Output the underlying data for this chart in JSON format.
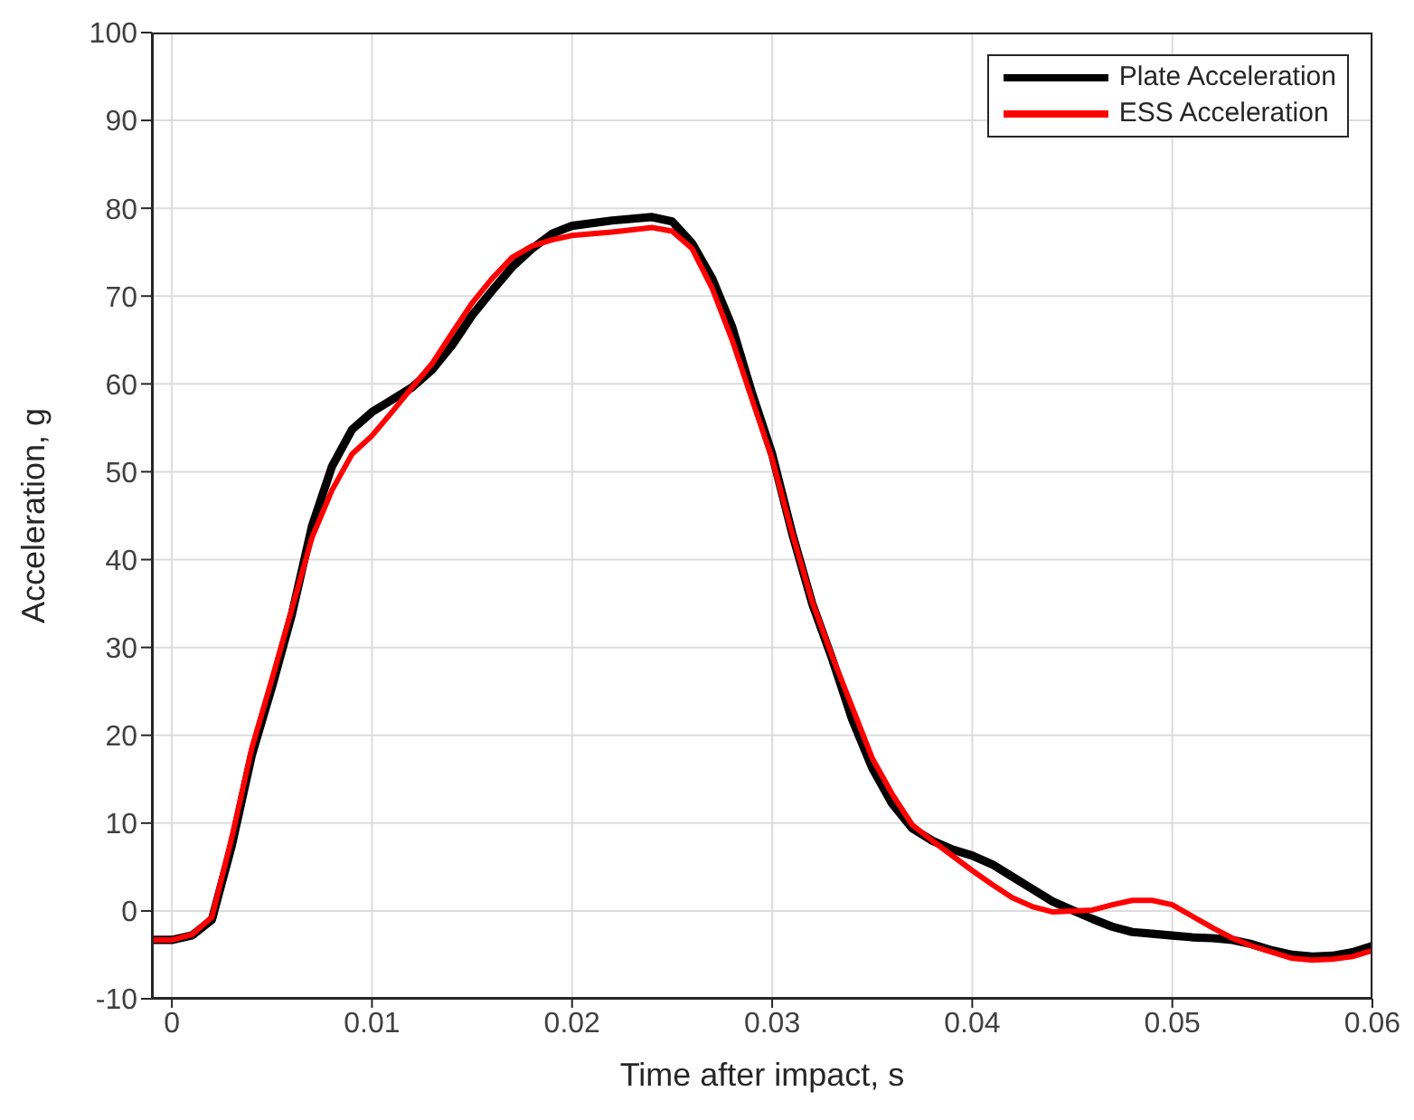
{
  "chart_data": {
    "type": "line",
    "xlabel": "Time after impact, s",
    "ylabel": "Acceleration, g",
    "x": [
      -0.001,
      0,
      0.001,
      0.002,
      0.003,
      0.004,
      0.005,
      0.006,
      0.007,
      0.008,
      0.009,
      0.01,
      0.011,
      0.012,
      0.013,
      0.014,
      0.015,
      0.016,
      0.017,
      0.018,
      0.019,
      0.02,
      0.022,
      0.024,
      0.025,
      0.026,
      0.027,
      0.028,
      0.029,
      0.03,
      0.031,
      0.032,
      0.033,
      0.034,
      0.035,
      0.036,
      0.037,
      0.038,
      0.039,
      0.04,
      0.041,
      0.042,
      0.043,
      0.044,
      0.045,
      0.046,
      0.047,
      0.048,
      0.049,
      0.05,
      0.051,
      0.052,
      0.053,
      0.054,
      0.055,
      0.056,
      0.057,
      0.058,
      0.059,
      0.06
    ],
    "series": [
      {
        "name": "Plate Acceleration",
        "color": "#000000",
        "values": [
          -3.3,
          -3.3,
          -2.8,
          -1,
          7.5,
          17.8,
          25.5,
          33.8,
          43.8,
          50.6,
          54.8,
          56.8,
          58.2,
          59.6,
          61.6,
          64.4,
          67.8,
          70.6,
          73.3,
          75.4,
          77.1,
          78,
          78.6,
          79,
          78.5,
          76,
          72,
          66.5,
          58.9,
          52,
          43,
          35,
          28.7,
          21.8,
          16.3,
          12.2,
          9.4,
          8,
          7,
          6.3,
          5.3,
          3.9,
          2.5,
          1.1,
          0.1,
          -0.9,
          -1.8,
          -2.4,
          -2.6,
          -2.8,
          -3,
          -3.1,
          -3.3,
          -3.8,
          -4.5,
          -5,
          -5.2,
          -5.1,
          -4.7,
          -4
        ]
      },
      {
        "name": "ESS Acceleration",
        "color": "#ff0000",
        "values": [
          -3.3,
          -3.3,
          -2.7,
          -0.7,
          8.4,
          18.6,
          26.4,
          34.4,
          42.5,
          47.9,
          52,
          54.1,
          56.8,
          59.6,
          62.3,
          65.8,
          69.2,
          72,
          74.4,
          75.7,
          76.4,
          76.9,
          77.3,
          77.8,
          77.4,
          75.4,
          70.9,
          65,
          58.2,
          51.5,
          43,
          35.2,
          29,
          23.2,
          17.4,
          13.3,
          9.8,
          8,
          6.3,
          4.6,
          3,
          1.5,
          0.5,
          -0.1,
          0,
          0.1,
          0.7,
          1.2,
          1.2,
          0.7,
          -0.6,
          -1.9,
          -3.1,
          -4,
          -4.7,
          -5.4,
          -5.6,
          -5.5,
          -5.2,
          -4.5
        ]
      }
    ],
    "xlim": [
      -0.001,
      0.06
    ],
    "xticks": [
      0,
      0.01,
      0.02,
      0.03,
      0.04,
      0.05,
      0.06
    ],
    "ylim": [
      -10,
      100
    ],
    "yticks": [
      -10,
      0,
      10,
      20,
      30,
      40,
      50,
      60,
      70,
      80,
      90,
      100
    ],
    "grid": true,
    "legend": "top right",
    "line_style": "solid",
    "marker": "none"
  }
}
